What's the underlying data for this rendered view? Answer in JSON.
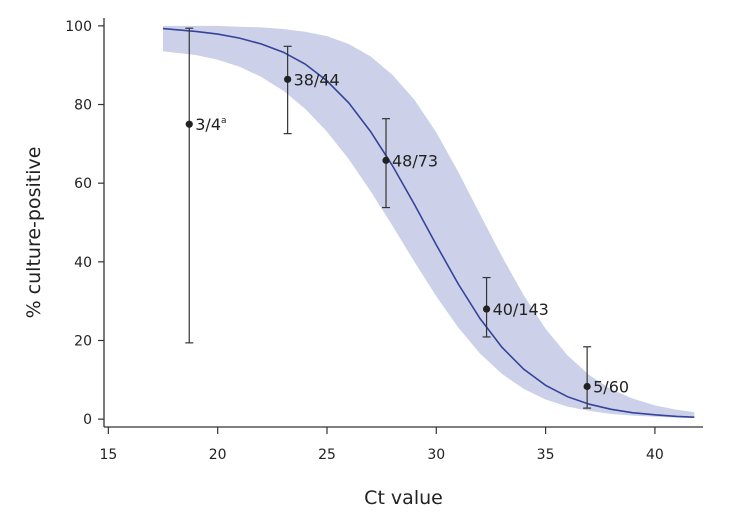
{
  "chart_data": {
    "type": "scatter",
    "title": "",
    "xlabel": "Ct value",
    "ylabel": "% culture-positive",
    "xlim": [
      14.8,
      42.2
    ],
    "ylim": [
      -2,
      102
    ],
    "xticks": [
      15,
      20,
      25,
      30,
      35,
      40
    ],
    "yticks": [
      0,
      20,
      40,
      60,
      80,
      100
    ],
    "points": [
      {
        "x": 18.7,
        "y": 75.0,
        "lower": 19.4,
        "upper": 99.4,
        "label": "3/4",
        "note": "a"
      },
      {
        "x": 23.2,
        "y": 86.4,
        "lower": 72.6,
        "upper": 94.8,
        "label": "38/44",
        "note": ""
      },
      {
        "x": 27.7,
        "y": 65.8,
        "lower": 53.8,
        "upper": 76.4,
        "label": "48/73",
        "note": ""
      },
      {
        "x": 32.3,
        "y": 28.0,
        "lower": 20.9,
        "upper": 36.0,
        "label": "40/143",
        "note": ""
      },
      {
        "x": 36.9,
        "y": 8.3,
        "lower": 2.8,
        "upper": 18.4,
        "label": "5/60",
        "note": ""
      }
    ],
    "fit": {
      "type": "logistic",
      "x": [
        17.5,
        19,
        20,
        21,
        22,
        23,
        24,
        25,
        26,
        27,
        28,
        29,
        30,
        31,
        32,
        33,
        34,
        35,
        36,
        37,
        38,
        39,
        40,
        41,
        41.8
      ],
      "y": [
        99.3,
        98.6,
        97.9,
        96.9,
        95.4,
        93.3,
        90.3,
        86.0,
        80.4,
        73.1,
        64.4,
        54.6,
        44.3,
        34.4,
        25.6,
        18.3,
        12.7,
        8.6,
        5.7,
        3.8,
        2.5,
        1.6,
        1.1,
        0.7,
        0.5
      ],
      "lower": [
        93.5,
        92.6,
        91.4,
        89.6,
        87.0,
        83.5,
        78.9,
        73.1,
        66.1,
        57.9,
        49.1,
        40.0,
        31.2,
        23.3,
        16.7,
        11.5,
        7.7,
        5.0,
        3.2,
        2.1,
        1.3,
        0.9,
        0.6,
        0.4,
        0.3
      ],
      "upper": [
        100.0,
        100.0,
        100.0,
        99.8,
        99.6,
        99.2,
        98.5,
        97.4,
        95.4,
        92.2,
        87.5,
        81.2,
        72.9,
        62.9,
        52.1,
        41.4,
        31.5,
        23.0,
        16.2,
        11.2,
        7.6,
        5.2,
        3.5,
        2.4,
        1.8
      ]
    },
    "colors": {
      "line": "#33449a",
      "band": "#ccd1e9",
      "axis": "#333333",
      "point": "#222222",
      "errorbar": "#333333"
    },
    "grid": false,
    "legend": "none"
  }
}
